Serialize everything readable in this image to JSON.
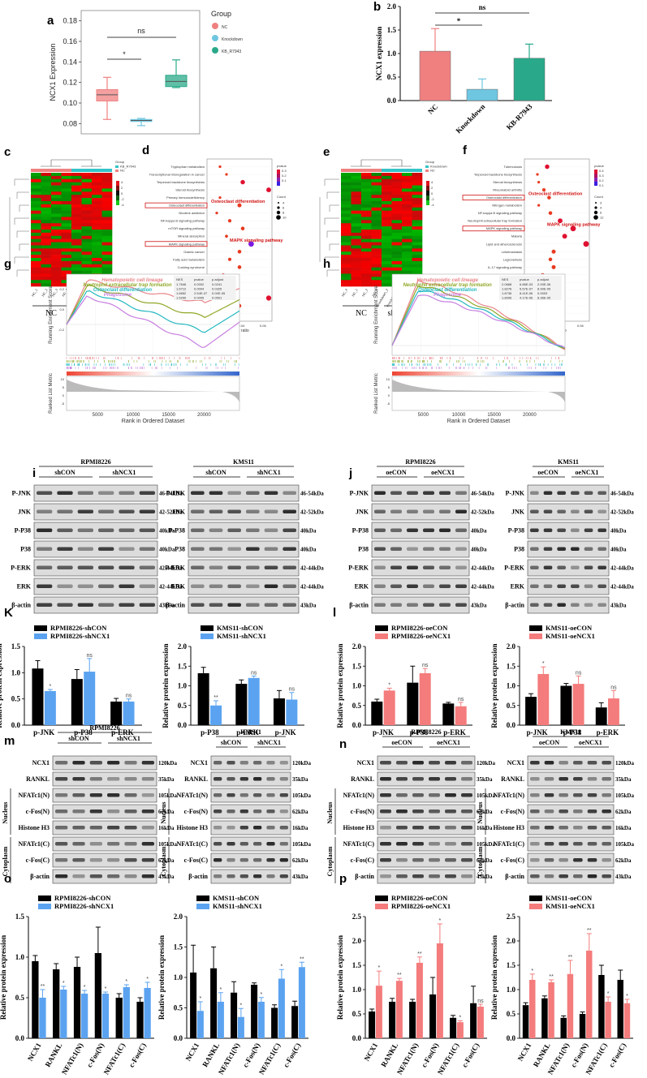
{
  "colors": {
    "nc": "#f08080",
    "kd": "#6ec6e0",
    "kb": "#2aa98a",
    "blk": "#000000",
    "blue": "#5ba3f0",
    "red": "#f47c7c",
    "heat_hi": "#e0141e",
    "heat_lo": "#18a818"
  },
  "panels": {
    "a": "a",
    "b": "b",
    "c": "c",
    "d": "d",
    "e": "e",
    "f": "f",
    "g": "g",
    "h": "h",
    "i": "i",
    "j": "j",
    "K": "K",
    "l": "l",
    "m": "m",
    "n": "n",
    "o": "o",
    "p": "p"
  },
  "stars": {
    "s": "*",
    "ss": "**",
    "ns": "ns"
  },
  "chart_data": [
    {
      "id": "a",
      "type": "box",
      "ylabel": "NCX1 Expression",
      "ylim": [
        0.07,
        0.19
      ],
      "yticks": [
        "0.08",
        "0.10",
        "0.12",
        "0.14",
        "0.16",
        "0.18"
      ],
      "legend_title": "Group",
      "legend": [
        "NC",
        "Knockdown",
        "KB_R7943"
      ],
      "boxes": [
        {
          "name": "NC",
          "min": 0.084,
          "q1": 0.102,
          "med": 0.108,
          "q3": 0.113,
          "max": 0.125
        },
        {
          "name": "Knockdown",
          "min": 0.078,
          "q1": 0.082,
          "med": 0.083,
          "q3": 0.084,
          "max": 0.085
        },
        {
          "name": "KB_R7943",
          "min": 0.115,
          "q1": 0.116,
          "med": 0.121,
          "q3": 0.127,
          "max": 0.142
        }
      ],
      "sig": [
        {
          "label": "*"
        },
        {
          "label": "ns"
        }
      ]
    },
    {
      "id": "b",
      "type": "bar",
      "ylabel": "NCX1 expression",
      "ylim": [
        0,
        2.0
      ],
      "yticks": [
        "0.0",
        "0.5",
        "1.0",
        "1.5",
        "2.0"
      ],
      "categories": [
        "NC",
        "Knockdown",
        "KB-R7943"
      ],
      "values": [
        1.05,
        0.24,
        0.9
      ],
      "errors": [
        0.48,
        0.22,
        0.3
      ],
      "sig": [
        {
          "label": "*"
        },
        {
          "label": "ns"
        }
      ]
    },
    {
      "id": "g",
      "type": "line",
      "title": "GSEA",
      "ylabel": "Running Enrichment Score",
      "ylabel2": "Ranked List Metric",
      "xlabel": "Rank in Ordered Dataset",
      "xticks": [
        "5000",
        "10000",
        "15000",
        "20000"
      ],
      "yticks": [
        "0.2",
        "0.0",
        "-0.2"
      ],
      "yticks2": [
        "10",
        "5",
        "0",
        "-5"
      ],
      "table_head": [
        "NES",
        "pvalue",
        "p.adjust"
      ],
      "table": [
        [
          "1.7646",
          "0.0002",
          "0.0241"
        ],
        [
          "1.6712",
          "0.0004",
          "0.0325"
        ],
        [
          "1.6652",
          "2.54E-07",
          "0.00E-05"
        ],
        [
          "1.5290",
          "0.0005",
          "0.0501"
        ]
      ],
      "series": [
        {
          "name": "Hematopoietic cell lineage",
          "color": "#e9848a"
        },
        {
          "name": "Neutrophil extracellular trap formation",
          "color": "#8fa827"
        },
        {
          "name": "Osteoclast differentiation",
          "color": "#22b8c0"
        },
        {
          "name": "Phagosome",
          "color": "#c77fe0"
        }
      ]
    },
    {
      "id": "h",
      "type": "line",
      "title": "GSEA",
      "ylabel": "Running Enrichment Score",
      "ylabel2": "Ranked List Metric",
      "xlabel": "Rank in Ordered Dataset",
      "xticks": [
        "5000",
        "10000",
        "15000",
        "20000"
      ],
      "yticks2": [
        "10",
        "5",
        "0",
        "-5"
      ],
      "table_head": [
        "NES",
        "pvalue",
        "p.adjust"
      ],
      "table": [
        [
          "2.0668",
          "6.86E-03",
          "2.00E-06"
        ],
        [
          "1.8276",
          "5.67E-07",
          "8.90E-05"
        ],
        [
          "1.8736",
          "8.41E-06",
          "0.0003"
        ],
        [
          "1.8006",
          "4.17E-06",
          "8.36E-05"
        ]
      ],
      "series": [
        {
          "name": "Hematopoietic cell lineage",
          "color": "#e9848a"
        },
        {
          "name": "Neutrophil extracellular trap formation",
          "color": "#8fa827"
        },
        {
          "name": "Osteoclast differentiation",
          "color": "#22b8c0"
        },
        {
          "name": "Phagosome",
          "color": "#c77fe0"
        }
      ]
    },
    {
      "id": "K1",
      "type": "bar",
      "ylabel": "Relative protein expression",
      "ylim": [
        0,
        1.5
      ],
      "yticks": [
        "0.0",
        "0.5",
        "1.0",
        "1.5"
      ],
      "categories": [
        "p-JNK",
        "p-P38",
        "p-ERK"
      ],
      "series": [
        {
          "name": "RPMI8226-shCON",
          "values": [
            1.08,
            0.88,
            0.45
          ],
          "err": [
            0.15,
            0.18,
            0.06
          ]
        },
        {
          "name": "RPMI8226-shNCX1",
          "values": [
            0.65,
            1.02,
            0.45
          ],
          "err": [
            0.03,
            0.25,
            0.05
          ]
        }
      ],
      "sig": [
        "*",
        "ns",
        "ns"
      ]
    },
    {
      "id": "K2",
      "type": "bar",
      "ylabel": "Relative protein expression",
      "ylim": [
        0,
        2.0
      ],
      "yticks": [
        "0.0",
        "0.5",
        "1.0",
        "1.5",
        "2.0"
      ],
      "categories": [
        "p-P38",
        "p-ERK",
        "p-JNK"
      ],
      "series": [
        {
          "name": "KMS11-shCON",
          "values": [
            1.32,
            1.05,
            0.68
          ],
          "err": [
            0.15,
            0.1,
            0.2
          ]
        },
        {
          "name": "KMS11-shNCX1",
          "values": [
            0.5,
            1.2,
            0.65
          ],
          "err": [
            0.12,
            0.05,
            0.18
          ]
        }
      ],
      "sig": [
        "**",
        "ns",
        "ns"
      ]
    },
    {
      "id": "l1",
      "type": "bar",
      "ylabel": "Relative protein expression",
      "ylim": [
        0,
        2.0
      ],
      "yticks": [
        "0.0",
        "0.5",
        "1.0",
        "1.5",
        "2.0"
      ],
      "categories": [
        "p-JNK",
        "p-P38",
        "p-ERK"
      ],
      "series": [
        {
          "name": "RPMI8226-oeCON",
          "values": [
            0.6,
            1.08,
            0.55
          ],
          "err": [
            0.06,
            0.42,
            0.03
          ]
        },
        {
          "name": "RPMI8226-oeNCX1",
          "values": [
            0.88,
            1.32,
            0.48
          ],
          "err": [
            0.06,
            0.12,
            0.1
          ]
        }
      ],
      "sig": [
        "*",
        "ns",
        "ns"
      ]
    },
    {
      "id": "l2",
      "type": "bar",
      "ylabel": "Relative protein expression",
      "ylim": [
        0,
        2.0
      ],
      "yticks": [
        "0.0",
        "0.5",
        "1.0",
        "1.5",
        "2.0"
      ],
      "categories": [
        "p-JNK",
        "p-P38",
        "p-ERK"
      ],
      "series": [
        {
          "name": "KMS11-oeCON",
          "values": [
            0.72,
            1.0,
            0.45
          ],
          "err": [
            0.08,
            0.06,
            0.12
          ]
        },
        {
          "name": "KMS11-oeNCX1",
          "values": [
            1.3,
            1.05,
            0.68
          ],
          "err": [
            0.18,
            0.2,
            0.2
          ]
        }
      ],
      "sig": [
        "*",
        "ns",
        "ns"
      ]
    },
    {
      "id": "o1",
      "type": "bar",
      "ylabel": "Relative protein expression",
      "ylim": [
        0,
        1.5
      ],
      "yticks": [
        "0.0",
        "0.5",
        "1.0",
        "1.5"
      ],
      "categories": [
        "NCX1",
        "RANKL",
        "NFATc1(N)",
        "c-Fos(N)",
        "NFATc1(C)",
        "c-Fos(C)"
      ],
      "series": [
        {
          "name": "RPMI8226-shCON",
          "values": [
            0.95,
            0.85,
            0.88,
            1.05,
            0.5,
            0.45
          ],
          "err": [
            0.07,
            0.07,
            0.12,
            0.32,
            0.05,
            0.05
          ]
        },
        {
          "name": "RPMI8226-shNCX1",
          "values": [
            0.5,
            0.6,
            0.55,
            0.55,
            0.63,
            0.62
          ],
          "err": [
            0.1,
            0.04,
            0.04,
            0.02,
            0.03,
            0.07
          ]
        }
      ],
      "sig": [
        "**",
        "*",
        "*",
        "*",
        "*",
        "*"
      ]
    },
    {
      "id": "o2",
      "type": "bar",
      "ylabel": "Relative protein expression",
      "ylim": [
        0,
        2.0
      ],
      "yticks": [
        "0.0",
        "0.5",
        "1.0",
        "1.5",
        "2.0"
      ],
      "categories": [
        "NCX1",
        "RANKL",
        "NFATc1(N)",
        "c-Fos(N)",
        "NFATc1(C)",
        "c-Fos(C)"
      ],
      "series": [
        {
          "name": "KMS11-shCON",
          "values": [
            1.08,
            1.15,
            0.75,
            0.88,
            0.5,
            0.53
          ],
          "err": [
            0.45,
            0.35,
            0.18,
            0.03,
            0.05,
            0.08
          ]
        },
        {
          "name": "KMS11-shNCX1",
          "values": [
            0.45,
            0.6,
            0.35,
            0.6,
            0.98,
            1.17
          ],
          " err": [
            0.15,
            0.15,
            0.14,
            0.07,
            0.15,
            0.08
          ],
          "err": [
            0.15,
            0.15,
            0.14,
            0.07,
            0.15,
            0.08
          ]
        }
      ],
      "sig": [
        "*",
        "*",
        "*",
        "*",
        "*",
        "**"
      ]
    },
    {
      "id": "p1",
      "type": "bar",
      "ylabel": "Relative protein expression",
      "ylim": [
        0,
        2.5
      ],
      "yticks": [
        "0.0",
        "0.5",
        "1.0",
        "1.5",
        "2.0",
        "2.5"
      ],
      "categories": [
        "NCX1",
        "RANKL",
        "NFATc1(N)",
        "c-Fos(N)",
        "NFATc1(C)",
        "c-Fos(C)"
      ],
      "series": [
        {
          "name": "RPMI8226-oeCON",
          "values": [
            0.55,
            0.75,
            0.75,
            0.9,
            0.42,
            0.72
          ],
          "err": [
            0.05,
            0.07,
            0.05,
            0.35,
            0.05,
            0.35
          ]
        },
        {
          "name": "RPMI8226-oeNCX1",
          "values": [
            1.08,
            1.18,
            1.55,
            1.95,
            0.33,
            0.65
          ],
          "err": [
            0.3,
            0.05,
            0.12,
            0.4,
            0.03,
            0.05
          ]
        }
      ],
      "sig": [
        "*",
        "**",
        "**",
        "*",
        "*",
        "ns"
      ]
    },
    {
      "id": "p2",
      "type": "bar",
      "ylabel": "Relative protein expression",
      "ylim": [
        0,
        2.5
      ],
      "yticks": [
        "0.0",
        "0.5",
        "1.0",
        "1.5",
        "2.0",
        "2.5"
      ],
      "categories": [
        "NCX1",
        "RANKL",
        "NFATc1(N)",
        "c-Fos(N)",
        "NFATc1(C)",
        "c-Fos(C)"
      ],
      "series": [
        {
          "name": "KMS11-oeCON",
          "values": [
            0.68,
            0.82,
            0.42,
            0.5,
            1.3,
            1.2
          ],
          "err": [
            0.05,
            0.05,
            0.04,
            0.04,
            0.2,
            0.2
          ]
        },
        {
          "name": "KMS11-oeNCX1",
          "values": [
            1.2,
            1.15,
            1.32,
            1.8,
            0.75,
            0.72
          ],
          "err": [
            0.12,
            0.05,
            0.28,
            0.35,
            0.1,
            0.08
          ]
        }
      ],
      "sig": [
        "*",
        "**",
        "**",
        "**",
        "*",
        "*"
      ]
    }
  ],
  "heatmaps": {
    "c": {
      "legend_title": "Group",
      "legend": [
        "KB_R7943",
        "NC"
      ],
      "samples": [
        "NC_1",
        "NC_2",
        "NC_3",
        "NC_4",
        "KB_R7943_1",
        "KB_R7943_2",
        "KB_R7943_3",
        "KB_R7943_4"
      ],
      "group_a": "NC",
      "group_b": "KB-R7943",
      "scale": [
        "4",
        "2",
        "0",
        "-2",
        "-4"
      ]
    },
    "e": {
      "legend_title": "Group",
      "legend": [
        "Knockdown",
        "NC"
      ],
      "samples": [
        "NC_4",
        "NC_1",
        "NC_2",
        "NC_3",
        "Knockdown_2",
        "Knockdown_3",
        "Knockdown_4",
        "Knockdown_1"
      ],
      "group_a": "NC",
      "group_b": "shNCX1",
      "scale": [
        "4",
        "2",
        "0",
        "-2",
        "-4"
      ]
    }
  },
  "kegg": {
    "d": {
      "xlabel": "Gene ratio",
      "xticks": [
        "0.02",
        "0.04",
        "0.06"
      ],
      "legend_p": "pvalue",
      "p_ticks": [
        "0.3",
        "0.2",
        "0.1"
      ],
      "legend_c": "Count",
      "c_ticks": [
        "4",
        "6",
        "8",
        "10"
      ],
      "terms": [
        "Tryptophan metabolism",
        "Transcriptional misregulation in cancer",
        "Terpenoid backbone biosynthesis",
        "Steroid biosynthesis",
        "Primary immunodeficiency",
        "Osteoclast differentiation",
        "Nicotine addiction",
        "NF-kappa B signaling pathway",
        "mTOR signaling pathway",
        "Mineral absorption",
        "MAPK signaling pathway",
        "Gastric cancer",
        "Fatty acid metabolism",
        "Cushing syndrome",
        "Circadian rhythm",
        "Cholesterol metabolism",
        "Basal cell carcinoma",
        "Axon guidance",
        "AMPK signaling pathway",
        "ABC transporters"
      ],
      "ann1": "Osteoclast differentiation",
      "ann2": "MAPK signaling pathway"
    },
    "f": {
      "xlabel": "Gene ratio",
      "xticks": [
        "0.02",
        "0.04",
        "0.06"
      ],
      "legend_p": "pvalue",
      "p_ticks": [
        "0.4",
        "0.3",
        "0.2",
        "0.1"
      ],
      "legend_c": "Count",
      "c_ticks": [
        "3",
        "4",
        "6",
        "12"
      ],
      "terms": [
        "Tuberculosis",
        "Terpenoid backbone biosynthesis",
        "Steroid biosynthesis",
        "Rheumatoid arthritis",
        "Osteoclast differentiation",
        "Nitrogen metabolism",
        "NF-kappa B signaling pathway",
        "Neutrophil extracellular trap formation",
        "MAPK signaling pathway",
        "Malaria",
        "Lipid and atherosclerosis",
        "Leishmaniasis",
        "Legionellosis",
        "IL-17 signaling pathway",
        "Glycine, serine and threonine metabolism",
        "Cysteine and methionine metabolism",
        "Chagas disease",
        "Biosynthesis of amino acids",
        "Amoebiasis",
        "African trypanosomiasis"
      ],
      "ann1": "Osteoclast differentiation",
      "ann2": "MAPK signaling pathway"
    }
  },
  "blots": {
    "i": {
      "cells": [
        "RPMI8226",
        "KMS11"
      ],
      "groups": [
        "shCON",
        "shNCX1"
      ],
      "rows": [
        "P-JNK",
        "JNK",
        "P-P38",
        "P38",
        "P-ERK",
        "ERK",
        "β-actin"
      ],
      "kda": [
        "46-54kDa",
        "42-52kDa",
        "40kDa",
        "40kDa",
        "42-44kDa",
        "42-44kDa",
        "43kDa"
      ],
      "rows2": [
        "P-JNK",
        "JNK",
        "P-P38",
        "P38",
        "P-ERK",
        "ERK",
        "β-actin"
      ],
      "kda2": [
        "46-54kDa",
        "42-52kDa",
        "40kDa",
        "40kDa",
        "42-44kDa",
        "42-44kDa",
        "43kDa"
      ]
    },
    "j": {
      "cells": [
        "RPMI8226",
        "KMS11"
      ],
      "groups": [
        "oeCON",
        "oeNCX1"
      ],
      "rows": [
        "P-JNK",
        "JNK",
        "P-P38",
        "P38",
        "P-ERK",
        "ERK",
        "β-actin"
      ],
      "kda": [
        "46-54kDa",
        "42-52kDa",
        "40kDa",
        "40kDa",
        "42-44kDa",
        "42-44kDa",
        "43kDa"
      ],
      "rows2": [
        "P-JNK",
        "JNK",
        "P-P38",
        "P38",
        "P-ERK",
        "ERK",
        "β-actin"
      ],
      "kda2": [
        "46-54kDa",
        "42-52kDa",
        "40kDa",
        "40kDa",
        "42-44kDa",
        "42-44kDa",
        "43kDa"
      ]
    },
    "m": {
      "cells": [
        "RPMI8226",
        "KMS11"
      ],
      "groups": [
        "shCON",
        "shNCX1"
      ],
      "rows": [
        "NCX1",
        "RANKL",
        "NFATc1(N)",
        "c-Fos(N)",
        "Histone H3",
        "NFATc1(C)",
        "c-Fos(C)",
        "β-actin"
      ],
      "kda": [
        "120kDa",
        "35kDa",
        "105kDa",
        "62kDa",
        "16kDa",
        "105kDa",
        "62kDa",
        "43kDa"
      ],
      "nucleus": "Nucleus",
      "cytoplasm": "Cytoplasm"
    },
    "n": {
      "cells": [
        "RPMI8226",
        "KMS11"
      ],
      "groups": [
        "oeCON",
        "oeNCX1"
      ],
      "rows": [
        "NCX1",
        "RANKL",
        "NFATc1(N)",
        "c-Fos(N)",
        "Histone H3",
        "NFATc1(C)",
        "c-Fos(C)",
        "β-actin"
      ],
      "kda": [
        "120kDa",
        "35kDa",
        "105kDa",
        "62kDa",
        "16kDa",
        "105kDa",
        "62kDa",
        "43kDa"
      ],
      "nucleus": "Nucleus",
      "cytoplasm": "Cytoplasm"
    }
  }
}
